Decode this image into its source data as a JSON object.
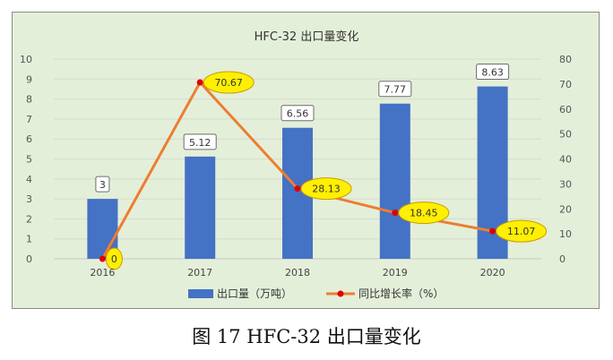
{
  "caption": "图 17 HFC-32 出口量变化",
  "chart_data": {
    "type": "bar+line",
    "title": "HFC-32 出口量变化",
    "categories": [
      "2016",
      "2017",
      "2018",
      "2019",
      "2020"
    ],
    "series": [
      {
        "name": "出口量（万吨）",
        "type": "bar",
        "axis": "left",
        "values": [
          3,
          5.12,
          6.56,
          7.77,
          8.63
        ],
        "labels": [
          "3",
          "5.12",
          "6.56",
          "7.77",
          "8.63"
        ],
        "color": "#4472c4"
      },
      {
        "name": "同比增长率（%）",
        "type": "line",
        "axis": "right",
        "values": [
          0,
          70.67,
          28.13,
          18.45,
          11.07
        ],
        "labels": [
          "0",
          "70.67",
          "28.13",
          "18.45",
          "11.07"
        ],
        "color": "#ed7d31",
        "marker_color": "#e00000",
        "label_fill": "#ffef00"
      }
    ],
    "y_left": {
      "min": 0,
      "max": 10,
      "step": 1,
      "ticks": [
        "0",
        "1",
        "2",
        "3",
        "4",
        "5",
        "6",
        "7",
        "8",
        "9",
        "10"
      ]
    },
    "y_right": {
      "min": 0,
      "max": 80,
      "step": 10,
      "ticks": [
        "0",
        "10",
        "20",
        "30",
        "40",
        "50",
        "60",
        "70",
        "80"
      ]
    },
    "grid": true,
    "legend": "bottom",
    "background": "#e4efd9"
  }
}
